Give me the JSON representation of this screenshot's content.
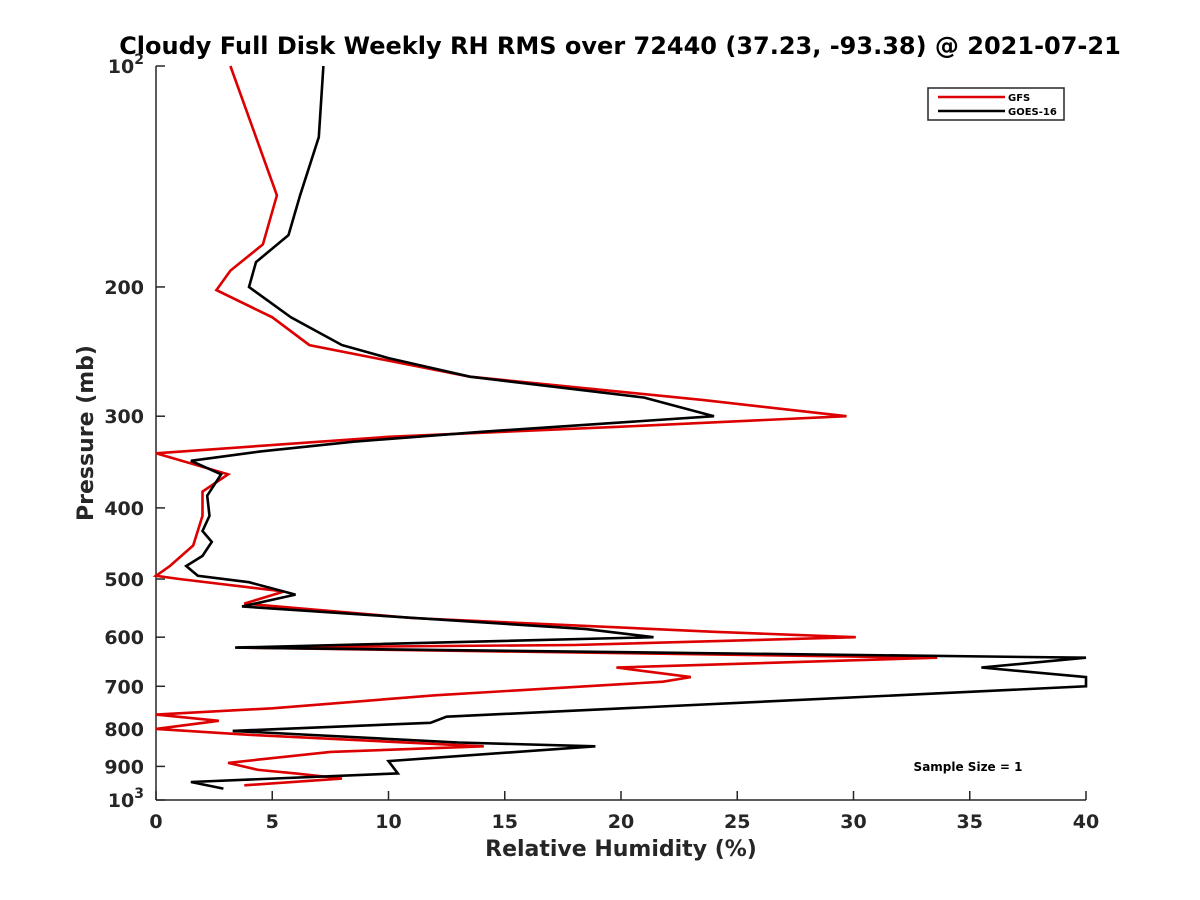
{
  "chart_data": {
    "type": "line",
    "title": "Cloudy Full Disk Weekly RH RMS over 72440 (37.23, -93.38) @ 2021-07-21",
    "xlabel": "Relative Humidity (%)",
    "ylabel": "Pressure (mb)",
    "xlim": [
      0,
      40
    ],
    "ylim": [
      100,
      1000
    ],
    "yscale": "log",
    "y_reversed": true,
    "x_ticks": [
      0,
      5,
      10,
      15,
      20,
      25,
      30,
      35,
      40
    ],
    "y_ticks": [
      {
        "value": 100,
        "label": "10",
        "exp": "2"
      },
      {
        "value": 200,
        "label": "200"
      },
      {
        "value": 300,
        "label": "300"
      },
      {
        "value": 400,
        "label": "400"
      },
      {
        "value": 500,
        "label": "500"
      },
      {
        "value": 600,
        "label": "600"
      },
      {
        "value": 700,
        "label": "700"
      },
      {
        "value": 800,
        "label": "800"
      },
      {
        "value": 900,
        "label": "900"
      },
      {
        "value": 1000,
        "label": "10",
        "exp": "3"
      }
    ],
    "grid": false,
    "legend_position": "top-right",
    "annotation": "Sample Size = 1",
    "series": [
      {
        "name": "GFS",
        "color": "#dd0000",
        "points": [
          [
            3.2,
            100
          ],
          [
            5.2,
            150
          ],
          [
            4.6,
            175
          ],
          [
            3.2,
            190
          ],
          [
            2.6,
            202
          ],
          [
            5.0,
            220
          ],
          [
            6.6,
            240
          ],
          [
            13.5,
            265
          ],
          [
            23.5,
            285
          ],
          [
            29.7,
            300
          ],
          [
            20.0,
            310
          ],
          [
            10.0,
            320
          ],
          [
            0.0,
            337
          ],
          [
            3.1,
            360
          ],
          [
            2.0,
            380
          ],
          [
            2.0,
            410
          ],
          [
            1.6,
            450
          ],
          [
            0.6,
            480
          ],
          [
            0.0,
            495
          ],
          [
            1.0,
            500
          ],
          [
            5.5,
            520
          ],
          [
            3.8,
            540
          ],
          [
            11.0,
            565
          ],
          [
            24.0,
            590
          ],
          [
            30.1,
            600
          ],
          [
            18.0,
            615
          ],
          [
            3.5,
            620
          ],
          [
            33.6,
            640
          ],
          [
            19.8,
            660
          ],
          [
            23.0,
            680
          ],
          [
            21.8,
            690
          ],
          [
            12.0,
            720
          ],
          [
            5.0,
            750
          ],
          [
            0.0,
            765
          ],
          [
            2.7,
            780
          ],
          [
            0.0,
            800
          ],
          [
            4.0,
            815
          ],
          [
            14.1,
            845
          ],
          [
            7.5,
            860
          ],
          [
            3.1,
            890
          ],
          [
            4.4,
            910
          ],
          [
            6.0,
            920
          ],
          [
            8.0,
            935
          ],
          [
            3.8,
            955
          ]
        ]
      },
      {
        "name": "GOES-16",
        "color": "#000000",
        "points": [
          [
            7.2,
            100
          ],
          [
            7.0,
            125
          ],
          [
            6.2,
            150
          ],
          [
            5.7,
            170
          ],
          [
            4.3,
            185
          ],
          [
            4.0,
            200
          ],
          [
            5.8,
            220
          ],
          [
            8.0,
            240
          ],
          [
            10.0,
            250
          ],
          [
            13.5,
            265
          ],
          [
            21.0,
            283
          ],
          [
            24.0,
            300
          ],
          [
            14.0,
            315
          ],
          [
            8.5,
            325
          ],
          [
            4.5,
            335
          ],
          [
            1.5,
            345
          ],
          [
            2.8,
            360
          ],
          [
            2.2,
            385
          ],
          [
            2.3,
            410
          ],
          [
            2.0,
            430
          ],
          [
            2.4,
            445
          ],
          [
            2.0,
            465
          ],
          [
            1.3,
            480
          ],
          [
            1.8,
            495
          ],
          [
            4.0,
            505
          ],
          [
            6.0,
            525
          ],
          [
            3.7,
            545
          ],
          [
            9.3,
            560
          ],
          [
            18.5,
            585
          ],
          [
            21.4,
            600
          ],
          [
            3.4,
            620
          ],
          [
            40.0,
            640
          ],
          [
            35.5,
            660
          ],
          [
            40.0,
            680
          ],
          [
            40.0,
            700
          ],
          [
            12.5,
            770
          ],
          [
            11.8,
            785
          ],
          [
            3.3,
            805
          ],
          [
            13.0,
            835
          ],
          [
            18.9,
            845
          ],
          [
            10.0,
            885
          ],
          [
            10.4,
            920
          ],
          [
            1.5,
            945
          ],
          [
            2.9,
            965
          ]
        ]
      }
    ]
  }
}
